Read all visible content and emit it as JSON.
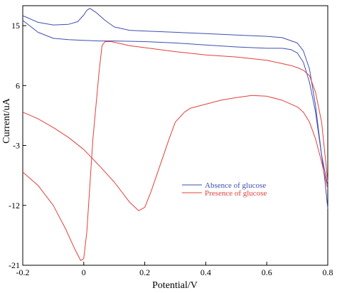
{
  "chart_data": {
    "type": "line",
    "title": "",
    "xlabel": "Potential/V",
    "ylabel": "Current/uA",
    "xlim": [
      -0.2,
      0.8
    ],
    "ylim": [
      -21,
      18
    ],
    "x_ticks": [
      "-0.2",
      "0",
      "0.2",
      "0.4",
      "0.6",
      "0.8"
    ],
    "y_ticks": [
      "15",
      "6",
      "-3",
      "-12",
      "-21"
    ],
    "grid": false,
    "legend_position": "center-right",
    "series": [
      {
        "name": "Absence of glucose",
        "color": "#3f4fb0",
        "segments": [
          {
            "x": [
              -0.2,
              -0.15,
              -0.1,
              -0.05,
              -0.02,
              0.0,
              0.01,
              0.02,
              0.04,
              0.07,
              0.1,
              0.15,
              0.2,
              0.3,
              0.4,
              0.5,
              0.6,
              0.65,
              0.7,
              0.72,
              0.74,
              0.76,
              0.78,
              0.79,
              0.8
            ],
            "y": [
              16.5,
              15.5,
              15.1,
              15.2,
              15.6,
              16.6,
              17.3,
              17.6,
              17.0,
              15.8,
              14.8,
              14.3,
              14.2,
              14.0,
              13.8,
              13.6,
              13.4,
              13.2,
              12.4,
              11.2,
              8.5,
              3.0,
              -4.5,
              -8.0,
              -12.5
            ]
          },
          {
            "x": [
              -0.2,
              -0.15,
              -0.1,
              -0.05,
              0.0,
              0.05,
              0.1,
              0.2,
              0.3,
              0.4,
              0.5,
              0.6,
              0.65,
              0.68,
              0.7,
              0.72,
              0.74,
              0.76,
              0.78,
              0.8
            ],
            "y": [
              15.8,
              14.0,
              13.1,
              12.9,
              12.8,
              12.7,
              12.7,
              12.6,
              12.4,
              12.1,
              11.8,
              11.6,
              11.6,
              11.4,
              10.9,
              9.5,
              6.5,
              2.0,
              -4.5,
              -9.0
            ]
          }
        ]
      },
      {
        "name": "Presence of glucose",
        "color": "#e0403c",
        "segments": [
          {
            "x": [
              -0.2,
              -0.15,
              -0.1,
              -0.06,
              -0.03,
              -0.01,
              0.0,
              0.01,
              0.02,
              0.03,
              0.05,
              0.06,
              0.07,
              0.09,
              0.12,
              0.15,
              0.2,
              0.3,
              0.4,
              0.5,
              0.6,
              0.65,
              0.68,
              0.7,
              0.72,
              0.74,
              0.76,
              0.78,
              0.8
            ],
            "y": [
              -7.0,
              -9.0,
              -12.0,
              -15.5,
              -18.5,
              -20.3,
              -20.0,
              -16.0,
              -9.0,
              -2.0,
              8.0,
              12.0,
              12.6,
              12.6,
              12.3,
              12.0,
              11.7,
              11.1,
              10.6,
              10.3,
              9.8,
              9.3,
              9.0,
              8.7,
              8.3,
              7.5,
              5.0,
              0.5,
              -8.5
            ]
          },
          {
            "x": [
              -0.2,
              -0.15,
              -0.1,
              -0.05,
              0.0,
              0.05,
              0.1,
              0.15,
              0.18,
              0.2,
              0.22,
              0.25,
              0.28,
              0.3,
              0.33,
              0.35,
              0.4,
              0.45,
              0.5,
              0.55,
              0.6,
              0.65,
              0.7,
              0.72,
              0.74,
              0.76,
              0.78,
              0.8
            ],
            "y": [
              2.0,
              1.0,
              -0.3,
              -1.8,
              -3.6,
              -6.0,
              -8.5,
              -11.5,
              -12.8,
              -12.3,
              -10.0,
              -6.0,
              -2.0,
              0.5,
              2.0,
              2.6,
              3.2,
              3.8,
              4.2,
              4.5,
              4.4,
              3.8,
              2.8,
              2.0,
              0.5,
              -2.0,
              -5.5,
              -9.5
            ]
          }
        ]
      }
    ]
  }
}
